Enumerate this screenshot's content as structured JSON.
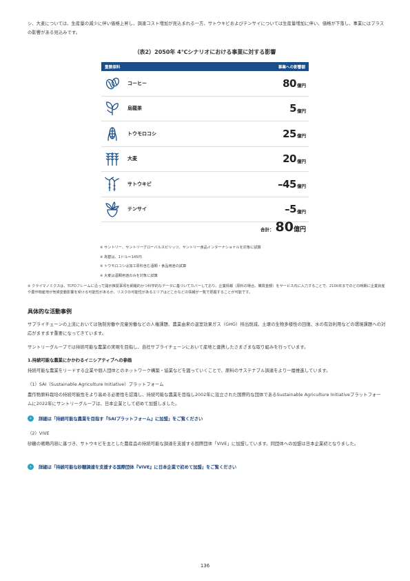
{
  "intro": "シ、大麦については、生産量の減少に伴い価格上昇し、調達コスト増加が見込まれる一方、サトウキビおよびテンサイについては生産量増加に伴い、価格が下落し、事業にはプラスの影響がある見込みです。",
  "table": {
    "title": "（表2）2050年 4℃シナリオにおける事業に対する影響",
    "header_left": "重要原料",
    "header_right": "事業への影響額",
    "unit": "億円",
    "rows": [
      {
        "name": "コーヒー",
        "value": "80",
        "icon": "coffee-bean-icon"
      },
      {
        "name": "烏龍茶",
        "value": "5",
        "icon": "tea-leaf-icon"
      },
      {
        "name": "トウモロコシ",
        "value": "25",
        "icon": "corn-icon"
      },
      {
        "name": "大麦",
        "value": "20",
        "icon": "barley-icon"
      },
      {
        "name": "サトウキビ",
        "value": "–45",
        "icon": "sugarcane-icon"
      },
      {
        "name": "テンサイ",
        "value": "–5",
        "icon": "sugar-beet-icon"
      }
    ],
    "total_label": "合計：",
    "total_value": "80",
    "total_unit": "億円"
  },
  "notes": [
    "※ サントリー、サントリーグローバルスピリッツ、サントリー食品インターナショナルを対象に試算",
    "※ 為替は、1ドル＝145円",
    "※ トウモロコシは加工原料含む酒類・食品用途の試算",
    "※ 大麦は酒類用途のみを対象に試算"
  ],
  "climate_note": "※ クライマノミクスは、TCFDフレームに沿って開示推奨事項を網羅的かつ科学的なデータに基づいてカバーしており、企業情報（原料の場合、購買金額）をサービス内に入力することで、2100年までのどの時期に企業資産や農作物産地が気候変動影響を受ける可能性があるか、リスクの可能性があるエリアはどこかなどの情報が一覧で把握することが可能です。",
  "section": {
    "heading": "具体的な活動事例",
    "para1": "サプライチェーンの上流においては強制労働や児童労働などの人権課題、農業由来の温室効果ガス（GHG）排出削減、土壌の生物多様性の回復、水の有効利用などの環境課題への対応がますます重要になってきています。",
    "para2": "サントリーグループでは持続可能な農業の実現を目指し、自社サプライチェーンにおいて産地と連携したさまざまな取り組みを行っています。",
    "sub_heading": "1.持続可能な農業にかかわるイニシアティブへの参画",
    "sub_para": "持続可能な農業をリードする企業や個人団体とのネットワーク構築・協業などを図っていくことで、原料のサステナブル調達をより一層推進しています。",
    "sai_title": "（1）SAI（Sustainable Agriculture Initiative）プラットフォーム",
    "sai_text": "農作物原料栽培の持続可能性をより高める必要性を認識し、持続可能な農業を目指し2002年に設立された国際的な団体であるSustainable Agriculture Initiativeプラットフォームに2022年にサントリーグループは、日本企業として初めて加盟しました。",
    "sai_link": "詳細は「持続可能な農業を目指す『SAIプラットフォーム』に加盟」をご覧ください",
    "vive_title": "（2）VIVE",
    "vive_text": "砂糖の戦略内容に基づき、サトウキビを主とした農産品の持続可能な調達を支援する国際団体「VIVE」に加盟しています。同団体への加盟は日本企業初となりました。",
    "vive_link": "詳細は「持続可能な砂糖調達を支援する国際団体『VIVE』に日本企業で初めて加盟」をご覧ください"
  },
  "page_number": "136",
  "colors": {
    "header_bg": "#1a4e88",
    "link": "#1a3f7a",
    "arrow": "#2aa3c6"
  }
}
